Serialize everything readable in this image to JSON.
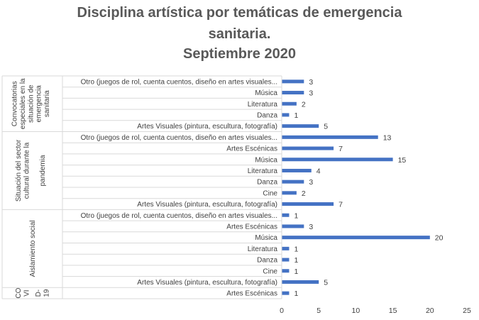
{
  "chart_data": {
    "type": "bar",
    "orientation": "horizontal",
    "title": [
      "Disciplina artística por temáticas de emergencia",
      "sanitaria.",
      "Septiembre 2020"
    ],
    "xlim": [
      0,
      25
    ],
    "xticks": [
      0,
      5,
      10,
      15,
      20,
      25
    ],
    "grid": "vertical gridlines off; group separators present",
    "legend": "none",
    "bar_color": "#4472c4",
    "groups": [
      {
        "label": "Convocatorias especiales en la situación de emergencia sanitaria",
        "label_lines": [
          [
            "Convocatorias",
            "especiales en la",
            "situación de"
          ],
          [
            "emergencia",
            "sanitaria"
          ]
        ],
        "categories": [
          {
            "label": "Otro (juegos de rol, cuenta cuentos, diseño en artes visuales...",
            "value": 3
          },
          {
            "label": "Música",
            "value": 3
          },
          {
            "label": "Literatura",
            "value": 2
          },
          {
            "label": "Danza",
            "value": 1
          },
          {
            "label": "Artes Visuales (pintura, escultura, fotografía)",
            "value": 5
          }
        ]
      },
      {
        "label": "Situación del sector cultural durante la pandemia",
        "label_lines": [
          [
            "Situación del sector",
            "cultural durante la"
          ],
          [
            "pandemia"
          ]
        ],
        "categories": [
          {
            "label": "Otro (juegos de rol, cuenta cuentos, diseño en artes visuales...",
            "value": 13
          },
          {
            "label": "Artes Escénicas",
            "value": 7
          },
          {
            "label": "Música",
            "value": 15
          },
          {
            "label": "Literatura",
            "value": 4
          },
          {
            "label": "Danza",
            "value": 3
          },
          {
            "label": "Cine",
            "value": 2
          },
          {
            "label": "Artes Visuales (pintura, escultura, fotografía)",
            "value": 7
          }
        ]
      },
      {
        "label": "Aislamiento social",
        "label_lines": [
          [
            "Aislamiento social"
          ]
        ],
        "categories": [
          {
            "label": "Otro (juegos de rol, cuenta cuentos, diseño en artes visuales...",
            "value": 1
          },
          {
            "label": "Artes Escénicas",
            "value": 3
          },
          {
            "label": "Música",
            "value": 20
          },
          {
            "label": "Literatura",
            "value": 1
          },
          {
            "label": "Danza",
            "value": 1
          },
          {
            "label": "Cine",
            "value": 1
          },
          {
            "label": "Artes Visuales (pintura, escultura, fotografía)",
            "value": 5
          }
        ]
      },
      {
        "label": "COVID-19",
        "label_lines": [
          [
            "CO",
            "VI"
          ],
          [
            "D-",
            "19"
          ]
        ],
        "categories": [
          {
            "label": "Artes Escénicas",
            "value": 1
          }
        ]
      }
    ]
  }
}
